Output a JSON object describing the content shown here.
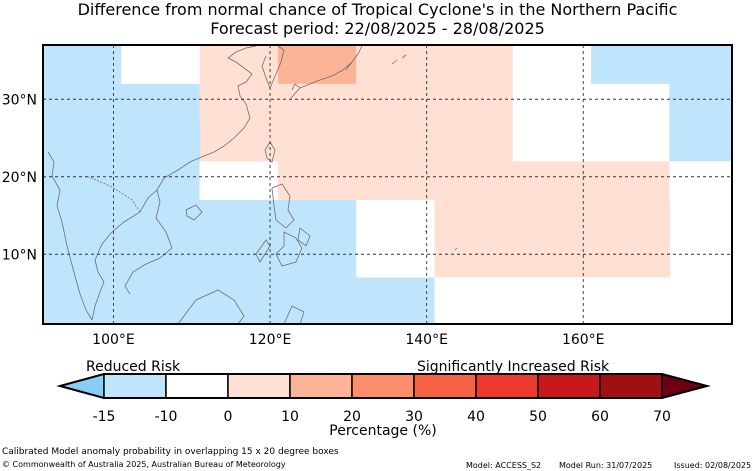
{
  "title": "Difference from normal chance of Tropical Cyclone's in the Northern Pacific",
  "subtitle": "Forecast period: 22/08/2025 - 28/08/2025",
  "map": {
    "lon_range": [
      91,
      179
    ],
    "lat_range": [
      1,
      37
    ],
    "lon_ticks": [
      100,
      120,
      140,
      160
    ],
    "lon_tick_labels": [
      "100°E",
      "120°E",
      "140°E",
      "160°E"
    ],
    "lat_ticks": [
      10,
      20,
      30
    ],
    "lat_tick_labels": [
      "10°N",
      "20°N",
      "30°N"
    ],
    "gridlines": "dashed"
  },
  "legend": {
    "left_label": "Reduced Risk",
    "right_label": "Significantly Increased Risk",
    "tick_labels": [
      "-15",
      "-10",
      "0",
      "10",
      "20",
      "30",
      "40",
      "50",
      "60",
      "70"
    ],
    "colors": [
      "#87cdfa",
      "#bfe5fd",
      "#ffffff",
      "#ffe0d3",
      "#fcb396",
      "#fc8e6c",
      "#f96345",
      "#eb3a2c",
      "#c9171c",
      "#a00f14",
      "#6b0010"
    ],
    "xlabel": "Percentage (%)"
  },
  "chart_data": {
    "type": "heatmap",
    "cell_size_deg": "5 x 5",
    "units": "Percentage (%)",
    "cells": [
      {
        "lon": [
          91,
          101
        ],
        "lat": [
          27,
          37
        ],
        "value": -15
      },
      {
        "lon": [
          101,
          111
        ],
        "lat": [
          32,
          37
        ],
        "value": -10
      },
      {
        "lon": [
          101,
          111
        ],
        "lat": [
          27,
          32
        ],
        "value": -15
      },
      {
        "lon": [
          111,
          121
        ],
        "lat": [
          32,
          37
        ],
        "value": 5
      },
      {
        "lon": [
          121,
          131
        ],
        "lat": [
          32,
          37
        ],
        "value": 15
      },
      {
        "lon": [
          131,
          141
        ],
        "lat": [
          32,
          37
        ],
        "value": 5
      },
      {
        "lon": [
          111,
          121
        ],
        "lat": [
          27,
          32
        ],
        "value": 0
      },
      {
        "lon": [
          121,
          141
        ],
        "lat": [
          27,
          32
        ],
        "value": 5
      },
      {
        "lon": [
          111,
          121
        ],
        "lat": [
          22,
          27
        ],
        "value": 0
      },
      {
        "lon": [
          121,
          141
        ],
        "lat": [
          22,
          27
        ],
        "value": 5
      },
      {
        "lon": [
          141,
          151
        ],
        "lat": [
          22,
          37
        ],
        "value": 0
      },
      {
        "lon": [
          151,
          161
        ],
        "lat": [
          22,
          37
        ],
        "value": -10
      },
      {
        "lon": [
          161,
          171
        ],
        "lat": [
          32,
          37
        ],
        "value": -15
      },
      {
        "lon": [
          161,
          171
        ],
        "lat": [
          22,
          32
        ],
        "value": -10
      },
      {
        "lon": [
          171,
          179
        ],
        "lat": [
          22,
          37
        ],
        "value": -15
      },
      {
        "lon": [
          91,
          111
        ],
        "lat": [
          17,
          27
        ],
        "value": -15
      },
      {
        "lon": [
          111,
          121
        ],
        "lat": [
          17,
          22
        ],
        "value": -10
      },
      {
        "lon": [
          121,
          171
        ],
        "lat": [
          17,
          22
        ],
        "value": 0
      },
      {
        "lon": [
          171,
          179
        ],
        "lat": [
          7,
          22
        ],
        "value": -10
      },
      {
        "lon": [
          91,
          131
        ],
        "lat": [
          1,
          17
        ],
        "value": -15
      },
      {
        "lon": [
          131,
          141
        ],
        "lat": [
          7,
          17
        ],
        "value": -10
      },
      {
        "lon": [
          131,
          141
        ],
        "lat": [
          1,
          7
        ],
        "value": -15
      },
      {
        "lon": [
          141,
          171
        ],
        "lat": [
          7,
          17
        ],
        "value": 0
      },
      {
        "lon": [
          141,
          179
        ],
        "lat": [
          1,
          7
        ],
        "value": -10
      }
    ]
  },
  "footer": {
    "caption": "Calibrated Model anomaly probability in overlapping 15 x 20 degree boxes",
    "copyright": "© Commonwealth of Australia 2025, Australian Bureau of Meteorology",
    "model": "Model: ACCESS_S2",
    "model_run": "Model Run: 31/07/2025",
    "issued": "Issued: 02/08/2025"
  }
}
